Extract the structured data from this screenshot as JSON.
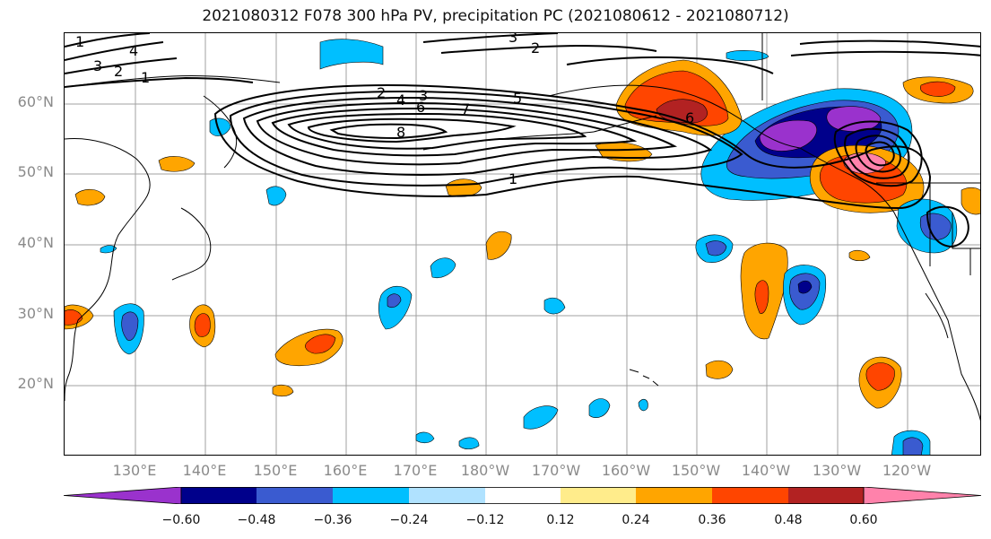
{
  "title": "2021080312 F078 300 hPa PV, precipitation PC (2021080612 - 2021080712)",
  "lat_labels": [
    "60°N",
    "50°N",
    "40°N",
    "30°N",
    "20°N"
  ],
  "lon_labels": [
    "130°E",
    "140°E",
    "150°E",
    "160°E",
    "170°E",
    "180°W",
    "170°W",
    "160°W",
    "150°W",
    "140°W",
    "130°W",
    "120°W"
  ],
  "contour_labels": [
    "1",
    "2",
    "3",
    "4",
    "5",
    "6",
    "7",
    "8",
    "1",
    "2",
    "3",
    "4",
    "1",
    "2",
    "3",
    "6"
  ],
  "colorbar": {
    "ticks": [
      "−0.60",
      "−0.48",
      "−0.36",
      "−0.24",
      "−0.12",
      "0.12",
      "0.24",
      "0.36",
      "0.48",
      "0.60"
    ],
    "colors": [
      "#9a32cd",
      "#00008b",
      "#3a5bd0",
      "#00bfff",
      "#b0e2ff",
      "#ffffff",
      "#ffec8b",
      "#ffa500",
      "#ff4500",
      "#b22222",
      "#ff82ab"
    ]
  },
  "palette": {
    "grid": "#a0a0a0",
    "coast": "#000000",
    "pv_contour": "#000000"
  }
}
